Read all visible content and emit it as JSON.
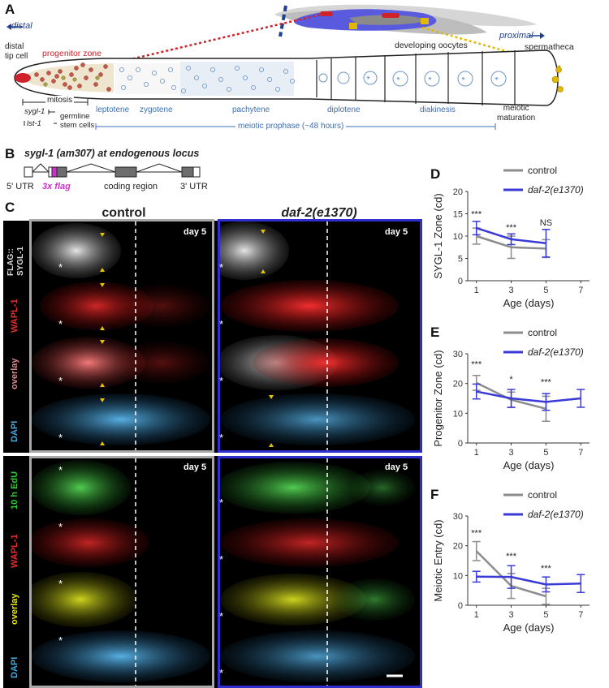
{
  "panelA": {
    "letter": "A",
    "distal": "distal",
    "proximal": "proximal",
    "distal_tip_cell": "distal\ntip cell",
    "progenitor_zone": "progenitor zone",
    "developing_oocytes": "developing oocytes",
    "spermatheca": "spermatheca",
    "mitosis": "mitosis",
    "sygl1": "sygl-1",
    "lst1": "lst-1",
    "germline_stem_cells": "germline\nstem cells",
    "leptotene": "leptotene",
    "zygotene": "zygotene",
    "pachytene": "pachytene",
    "diplotene": "diplotene",
    "diakinesis": "diakinesis",
    "meiotic_maturation": "meiotic\nmaturation",
    "meiotic_prophase": "meiotic prophase (~48 hours)",
    "colors": {
      "blue": "#3c6fb4",
      "red": "#d0222a",
      "yellow": "#e2b700"
    }
  },
  "panelB": {
    "letter": "B",
    "title": "sygl-1 (am307) at endogenous locus",
    "utr5": "5' UTR",
    "flag": "3x flag",
    "coding": "coding region",
    "utr3": "3' UTR",
    "flag_color": "#cc33cc"
  },
  "panelC": {
    "letter": "C",
    "control": "control",
    "daf2": "daf-2(e1370)",
    "day": "day 5",
    "rows_top": [
      "FLAG::\nSYGL-1",
      "WAPL-1",
      "overlay",
      "DAPI"
    ],
    "rows_bottom": [
      "10 h EdU",
      "WAPL-1",
      "overlay",
      "DAPI"
    ],
    "star": "*",
    "control_border": "#a8a8a8",
    "daf2_border": "#2f2fcf"
  },
  "chart_data": [
    {
      "panel": "D",
      "type": "line",
      "title": "",
      "xlabel": "Age (days)",
      "ylabel": "SYGL-1 Zone (cd)",
      "x_ticks": [
        1,
        3,
        5,
        7
      ],
      "y_ticks": [
        0,
        5,
        10,
        15,
        20
      ],
      "ylim": [
        0,
        20
      ],
      "xlim": [
        0.5,
        7.5
      ],
      "legend": [
        "control",
        "daf-2(e1370)"
      ],
      "series": [
        {
          "name": "control",
          "color": "#8c8c8c",
          "x": [
            1,
            3,
            5
          ],
          "y": [
            10,
            7.5,
            7.2
          ],
          "err": [
            1.8,
            2.5,
            2.0
          ]
        },
        {
          "name": "daf-2(e1370)",
          "color": "#3a3ad6",
          "x": [
            1,
            3,
            5
          ],
          "y": [
            11.8,
            9.3,
            8.4
          ],
          "err": [
            1.5,
            1.2,
            3.1
          ]
        }
      ],
      "annotations": [
        {
          "x": 1,
          "text": "***",
          "y": 14.3
        },
        {
          "x": 3,
          "text": "***",
          "y": 11.3
        },
        {
          "x": 5,
          "text": "NS",
          "y": 12.4
        }
      ]
    },
    {
      "panel": "E",
      "type": "line",
      "title": "",
      "xlabel": "Age (days)",
      "ylabel": "Progenitor Zone (cd)",
      "x_ticks": [
        1,
        3,
        5,
        7
      ],
      "y_ticks": [
        0,
        10,
        20,
        30
      ],
      "ylim": [
        0,
        30
      ],
      "xlim": [
        0.5,
        7.5
      ],
      "legend": [
        "control",
        "daf-2(e1370)"
      ],
      "series": [
        {
          "name": "control",
          "color": "#8c8c8c",
          "x": [
            1,
            3,
            5
          ],
          "y": [
            20.2,
            14.5,
            11.5
          ],
          "err": [
            2.5,
            2.6,
            4.2
          ]
        },
        {
          "name": "daf-2(e1370)",
          "color": "#3a3ad6",
          "x": [
            1,
            3,
            5,
            7
          ],
          "y": [
            17.3,
            15.0,
            13.8,
            15.0
          ],
          "err": [
            2.5,
            3.0,
            2.8,
            3.0
          ]
        }
      ],
      "annotations": [
        {
          "x": 1,
          "text": "***",
          "y": 25.5
        },
        {
          "x": 3,
          "text": "*",
          "y": 20.5
        },
        {
          "x": 5,
          "text": "***",
          "y": 19.5
        }
      ]
    },
    {
      "panel": "F",
      "type": "line",
      "title": "",
      "xlabel": "Age (days)",
      "ylabel": "Meiotic Entry (cd)",
      "x_ticks": [
        1,
        3,
        5,
        7
      ],
      "y_ticks": [
        0,
        10,
        20,
        30
      ],
      "ylim": [
        0,
        30
      ],
      "xlim": [
        0.5,
        7.5
      ],
      "legend": [
        "control",
        "daf-2(e1370)"
      ],
      "series": [
        {
          "name": "control",
          "color": "#8c8c8c",
          "x": [
            1,
            3,
            5
          ],
          "y": [
            18.2,
            6.5,
            3.0
          ],
          "err": [
            3.2,
            4.2,
            2.7
          ]
        },
        {
          "name": "daf-2(e1370)",
          "color": "#3a3ad6",
          "x": [
            1,
            3,
            5,
            7
          ],
          "y": [
            9.6,
            9.5,
            7.0,
            7.3
          ],
          "err": [
            1.8,
            3.8,
            2.5,
            3.0
          ]
        }
      ],
      "annotations": [
        {
          "x": 1,
          "text": "***",
          "y": 23.3
        },
        {
          "x": 3,
          "text": "***",
          "y": 15.5
        },
        {
          "x": 5,
          "text": "***",
          "y": 11.5
        }
      ]
    }
  ]
}
